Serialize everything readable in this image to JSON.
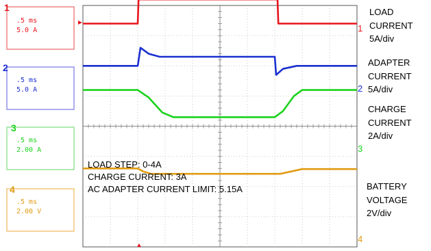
{
  "colors": {
    "ch1": "#e8141c",
    "ch2": "#1a2fd0",
    "ch3": "#19d21a",
    "ch4": "#e09b12",
    "grid": "#b8b8b8",
    "box1": "#f07a7a",
    "box2": "#8a8ae6",
    "box3": "#8ee08e",
    "box4": "#f2c070"
  },
  "channels": [
    {
      "id": "1",
      "time": ".5 ms",
      "scale": "5.0 A",
      "label": [
        "LOAD",
        "CURRENT",
        "5A/div"
      ]
    },
    {
      "id": "2",
      "time": ".5 ms",
      "scale": "5.0 A",
      "label": [
        "ADAPTER",
        "CURRENT",
        "5A/div"
      ]
    },
    {
      "id": "3",
      "time": ".5 ms",
      "scale": "2.00 A",
      "label": [
        "CHARGE",
        "CURRENT",
        "2A/div"
      ]
    },
    {
      "id": "4",
      "time": ".5 ms",
      "scale": "2.00 V",
      "label": [
        "BATTERY",
        "VOLTAGE",
        "2V/div"
      ]
    }
  ],
  "annotations": [
    "LOAD STEP: 0-4A",
    "CHARGE CURRENT: 3A",
    "AC ADAPTER CURRENT LIMIT: 5.15A"
  ],
  "chart_data": {
    "type": "line",
    "xlabel": "",
    "ylabel": "",
    "grid": true,
    "x_divisions": 10,
    "y_divisions": 8,
    "series": [
      {
        "name": "LOAD CURRENT",
        "x": [
          0,
          2.0,
          2.03,
          7.1,
          7.13,
          10
        ],
        "y": [
          3.4,
          3.4,
          4.2,
          4.2,
          3.4,
          3.4
        ]
      },
      {
        "name": "ADAPTER CURRENT",
        "x": [
          0,
          2.0,
          2.1,
          2.4,
          2.8,
          3.5,
          7.0,
          7.05,
          7.3,
          7.8,
          10
        ],
        "y": [
          2.0,
          2.0,
          2.6,
          2.4,
          2.3,
          2.3,
          2.3,
          1.7,
          1.9,
          2.0,
          2.0
        ]
      },
      {
        "name": "CHARGE CURRENT",
        "x": [
          0,
          2.0,
          2.4,
          2.9,
          3.3,
          7.0,
          7.3,
          7.7,
          8.0,
          10
        ],
        "y": [
          1.2,
          1.2,
          0.95,
          0.45,
          0.3,
          0.3,
          0.5,
          1.0,
          1.2,
          1.2
        ]
      },
      {
        "name": "BATTERY VOLTAGE",
        "x": [
          0,
          2.0,
          2.2,
          2.5,
          7.2,
          7.6,
          8.0,
          10
        ],
        "y": [
          -1.4,
          -1.4,
          -1.5,
          -1.58,
          -1.58,
          -1.5,
          -1.42,
          -1.42
        ]
      }
    ]
  }
}
